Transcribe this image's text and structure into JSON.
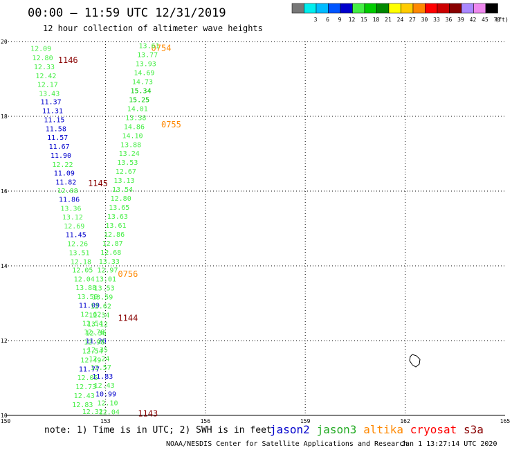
{
  "chart_data": {
    "type": "scatter",
    "title": "00:00 – 11:59 UTC 12/31/2019",
    "subtitle": "12 hour collection of altimeter wave heights",
    "xlim": [
      150,
      165
    ],
    "ylim": [
      10,
      20
    ],
    "x_ticks": [
      "150",
      "153",
      "156",
      "159",
      "162",
      "165"
    ],
    "y_ticks": [
      "20",
      "18",
      "16",
      "14",
      "12",
      "10"
    ],
    "grid": true,
    "color_scale": {
      "unit": "(ft)",
      "bins": [
        {
          "label": "",
          "color": "#777777"
        },
        {
          "label": "3",
          "color": "#00eeee"
        },
        {
          "label": "6",
          "color": "#00bbff"
        },
        {
          "label": "9",
          "color": "#0055ff"
        },
        {
          "label": "12",
          "color": "#0000cc"
        },
        {
          "label": "15",
          "color": "#44ee44"
        },
        {
          "label": "18",
          "color": "#00cc00"
        },
        {
          "label": "21",
          "color": "#008800"
        },
        {
          "label": "24",
          "color": "#ffff00"
        },
        {
          "label": "27",
          "color": "#ffcc00"
        },
        {
          "label": "30",
          "color": "#ff8800"
        },
        {
          "label": "33",
          "color": "#ff0000"
        },
        {
          "label": "36",
          "color": "#cc0000"
        },
        {
          "label": "39",
          "color": "#880000"
        },
        {
          "label": "42",
          "color": "#aa88ff"
        },
        {
          "label": "45",
          "color": "#ee88ee"
        },
        {
          "label": "70",
          "color": "#000000"
        }
      ]
    },
    "series": [
      {
        "name": "jason2",
        "color": "#0000cc",
        "times": [],
        "points": []
      },
      {
        "name": "jason3",
        "color": "#22aa22",
        "times": [],
        "points": []
      },
      {
        "name": "altika",
        "color": "#ff8800",
        "times": [
          {
            "x": 154.0,
            "y": 19.82,
            "t": "0754"
          },
          {
            "x": 154.3,
            "y": 17.78,
            "t": "0755"
          },
          {
            "x": 153.0,
            "y": 13.78,
            "t": "0756"
          }
        ],
        "points": []
      },
      {
        "name": "cryosat",
        "color": "#ff0000",
        "times": [],
        "points": []
      },
      {
        "name": "s3a",
        "color": "#880000",
        "times": [
          {
            "x": 151.2,
            "y": 19.5,
            "t": "1146"
          },
          {
            "x": 152.1,
            "y": 16.2,
            "t": "1145"
          },
          {
            "x": 153.0,
            "y": 12.6,
            "t": "1144"
          },
          {
            "x": 153.6,
            "y": 10.05,
            "t": "1143"
          }
        ],
        "points": [
          {
            "x": 150.75,
            "y": 19.75,
            "v": "12.09",
            "c": "#44ee44"
          },
          {
            "x": 150.8,
            "y": 19.5,
            "v": "12.80",
            "c": "#44ee44"
          },
          {
            "x": 150.85,
            "y": 19.26,
            "v": "12.33",
            "c": "#44ee44"
          },
          {
            "x": 150.9,
            "y": 19.02,
            "v": "12.42",
            "c": "#44ee44"
          },
          {
            "x": 150.95,
            "y": 18.79,
            "v": "12.17",
            "c": "#44ee44"
          },
          {
            "x": 151.0,
            "y": 18.55,
            "v": "13.43",
            "c": "#44ee44"
          },
          {
            "x": 151.05,
            "y": 18.32,
            "v": "11.37",
            "c": "#0000cc"
          },
          {
            "x": 151.1,
            "y": 18.08,
            "v": "11.31",
            "c": "#0000cc"
          },
          {
            "x": 151.15,
            "y": 17.84,
            "v": "11.15",
            "c": "#0000cc"
          },
          {
            "x": 151.2,
            "y": 17.6,
            "v": "11.58",
            "c": "#0000cc"
          },
          {
            "x": 151.25,
            "y": 17.37,
            "v": "11.57",
            "c": "#0000cc"
          },
          {
            "x": 151.3,
            "y": 17.13,
            "v": "11.67",
            "c": "#0000cc"
          },
          {
            "x": 151.35,
            "y": 16.89,
            "v": "11.90",
            "c": "#0000cc"
          },
          {
            "x": 151.4,
            "y": 16.65,
            "v": "12.22",
            "c": "#44ee44"
          },
          {
            "x": 151.45,
            "y": 16.42,
            "v": "11.09",
            "c": "#0000cc"
          },
          {
            "x": 151.5,
            "y": 16.18,
            "v": "11.82",
            "c": "#0000cc"
          },
          {
            "x": 151.55,
            "y": 15.94,
            "v": "12.08",
            "c": "#44ee44"
          },
          {
            "x": 151.6,
            "y": 15.71,
            "v": "11.86",
            "c": "#0000cc"
          },
          {
            "x": 151.65,
            "y": 15.47,
            "v": "13.36",
            "c": "#44ee44"
          },
          {
            "x": 151.7,
            "y": 15.24,
            "v": "13.12",
            "c": "#44ee44"
          },
          {
            "x": 151.75,
            "y": 15.0,
            "v": "12.69",
            "c": "#44ee44"
          },
          {
            "x": 151.8,
            "y": 14.77,
            "v": "11.45",
            "c": "#0000cc"
          },
          {
            "x": 151.85,
            "y": 14.53,
            "v": "12.26",
            "c": "#44ee44"
          },
          {
            "x": 151.9,
            "y": 14.29,
            "v": "13.51",
            "c": "#44ee44"
          },
          {
            "x": 151.95,
            "y": 14.05,
            "v": "12.18",
            "c": "#44ee44"
          },
          {
            "x": 152.0,
            "y": 13.82,
            "v": "12.05",
            "c": "#44ee44"
          },
          {
            "x": 152.05,
            "y": 13.58,
            "v": "12.04",
            "c": "#44ee44"
          },
          {
            "x": 152.1,
            "y": 13.35,
            "v": "13.88",
            "c": "#44ee44"
          },
          {
            "x": 152.15,
            "y": 13.11,
            "v": "13.59",
            "c": "#44ee44"
          },
          {
            "x": 152.2,
            "y": 12.88,
            "v": "11.09",
            "c": "#0000cc"
          },
          {
            "x": 152.25,
            "y": 12.64,
            "v": "12.62",
            "c": "#44ee44"
          },
          {
            "x": 152.3,
            "y": 12.4,
            "v": "12.54",
            "c": "#44ee44"
          },
          {
            "x": 152.35,
            "y": 12.17,
            "v": "12.78",
            "c": "#44ee44"
          },
          {
            "x": 152.4,
            "y": 11.93,
            "v": "11.20",
            "c": "#0000cc"
          },
          {
            "x": 152.45,
            "y": 11.69,
            "v": "12.35",
            "c": "#44ee44"
          },
          {
            "x": 152.5,
            "y": 11.45,
            "v": "12.24",
            "c": "#44ee44"
          },
          {
            "x": 152.55,
            "y": 11.22,
            "v": "12.57",
            "c": "#44ee44"
          },
          {
            "x": 152.6,
            "y": 10.98,
            "v": "11.83",
            "c": "#0000cc"
          },
          {
            "x": 152.65,
            "y": 10.74,
            "v": "12.43",
            "c": "#44ee44"
          },
          {
            "x": 152.7,
            "y": 10.51,
            "v": "10.99",
            "c": "#0000cc"
          },
          {
            "x": 152.75,
            "y": 10.27,
            "v": "12.10",
            "c": "#44ee44"
          },
          {
            "x": 152.8,
            "y": 10.03,
            "v": "12.04",
            "c": "#44ee44"
          }
        ]
      },
      {
        "name": "altika-track",
        "color": "#44ee44",
        "times": [],
        "points": [
          {
            "x": 154.0,
            "y": 19.82,
            "v": "13.61",
            "c": "#44ee44"
          },
          {
            "x": 153.95,
            "y": 19.58,
            "v": "13.77",
            "c": "#44ee44"
          },
          {
            "x": 153.9,
            "y": 19.34,
            "v": "13.93",
            "c": "#44ee44"
          },
          {
            "x": 153.85,
            "y": 19.1,
            "v": "14.69",
            "c": "#44ee44"
          },
          {
            "x": 153.8,
            "y": 18.86,
            "v": "14.73",
            "c": "#44ee44"
          },
          {
            "x": 153.75,
            "y": 18.62,
            "v": "15.34",
            "c": "#00cc00"
          },
          {
            "x": 153.7,
            "y": 18.38,
            "v": "15.25",
            "c": "#00cc00"
          },
          {
            "x": 153.65,
            "y": 18.14,
            "v": "14.01",
            "c": "#44ee44"
          },
          {
            "x": 153.6,
            "y": 17.9,
            "v": "13.38",
            "c": "#44ee44"
          },
          {
            "x": 153.55,
            "y": 17.66,
            "v": "14.86",
            "c": "#44ee44"
          },
          {
            "x": 153.5,
            "y": 17.42,
            "v": "14.10",
            "c": "#44ee44"
          },
          {
            "x": 153.45,
            "y": 17.18,
            "v": "13.88",
            "c": "#44ee44"
          },
          {
            "x": 153.4,
            "y": 16.94,
            "v": "13.24",
            "c": "#44ee44"
          },
          {
            "x": 153.35,
            "y": 16.7,
            "v": "13.53",
            "c": "#44ee44"
          },
          {
            "x": 153.3,
            "y": 16.46,
            "v": "12.67",
            "c": "#44ee44"
          },
          {
            "x": 153.25,
            "y": 16.22,
            "v": "13.13",
            "c": "#44ee44"
          },
          {
            "x": 153.2,
            "y": 15.98,
            "v": "13.54",
            "c": "#44ee44"
          },
          {
            "x": 153.15,
            "y": 15.74,
            "v": "12.80",
            "c": "#44ee44"
          },
          {
            "x": 153.1,
            "y": 15.5,
            "v": "13.65",
            "c": "#44ee44"
          },
          {
            "x": 153.05,
            "y": 15.26,
            "v": "13.63",
            "c": "#44ee44"
          },
          {
            "x": 153.0,
            "y": 15.02,
            "v": "13.61",
            "c": "#44ee44"
          },
          {
            "x": 152.95,
            "y": 14.78,
            "v": "12.86",
            "c": "#44ee44"
          },
          {
            "x": 152.9,
            "y": 14.54,
            "v": "12.87",
            "c": "#44ee44"
          },
          {
            "x": 152.85,
            "y": 14.3,
            "v": "12.68",
            "c": "#44ee44"
          },
          {
            "x": 152.8,
            "y": 14.06,
            "v": "13.33",
            "c": "#44ee44"
          },
          {
            "x": 152.75,
            "y": 13.82,
            "v": "12.97",
            "c": "#44ee44"
          },
          {
            "x": 152.7,
            "y": 13.58,
            "v": "13.01",
            "c": "#44ee44"
          },
          {
            "x": 152.65,
            "y": 13.34,
            "v": "13.53",
            "c": "#44ee44"
          },
          {
            "x": 152.6,
            "y": 13.1,
            "v": "13.59",
            "c": "#44ee44"
          },
          {
            "x": 152.55,
            "y": 12.86,
            "v": "12.62",
            "c": "#44ee44"
          },
          {
            "x": 152.5,
            "y": 12.62,
            "v": "12.34",
            "c": "#44ee44"
          },
          {
            "x": 152.45,
            "y": 12.38,
            "v": "13.12",
            "c": "#44ee44"
          },
          {
            "x": 152.4,
            "y": 12.14,
            "v": "12.36",
            "c": "#44ee44"
          },
          {
            "x": 152.35,
            "y": 11.9,
            "v": "12.98",
            "c": "#44ee44"
          },
          {
            "x": 152.3,
            "y": 11.66,
            "v": "12.54",
            "c": "#44ee44"
          },
          {
            "x": 152.25,
            "y": 11.42,
            "v": "12.49",
            "c": "#44ee44"
          },
          {
            "x": 152.2,
            "y": 11.18,
            "v": "11.77",
            "c": "#0000cc"
          },
          {
            "x": 152.15,
            "y": 10.94,
            "v": "12.05",
            "c": "#44ee44"
          },
          {
            "x": 152.1,
            "y": 10.7,
            "v": "12.73",
            "c": "#44ee44"
          },
          {
            "x": 152.05,
            "y": 10.46,
            "v": "12.43",
            "c": "#44ee44"
          },
          {
            "x": 152.0,
            "y": 10.22,
            "v": "12.83",
            "c": "#44ee44"
          },
          {
            "x": 152.3,
            "y": 10.04,
            "v": "12.32",
            "c": "#44ee44"
          }
        ]
      }
    ]
  },
  "footer": {
    "note": "note: 1) Time is in UTC; 2) SWH is in feet",
    "credit": "NOAA/NESDIS Center for Satellite Applications and Research",
    "timestamp": "Jan  1 13:27:14 UTC 2020",
    "satellites": [
      {
        "name": "jason2",
        "color": "#0000cc"
      },
      {
        "name": "jason3",
        "color": "#22aa22"
      },
      {
        "name": "altika",
        "color": "#ff8800"
      },
      {
        "name": "cryosat",
        "color": "#ff0000"
      },
      {
        "name": "s3a",
        "color": "#880000"
      }
    ]
  }
}
